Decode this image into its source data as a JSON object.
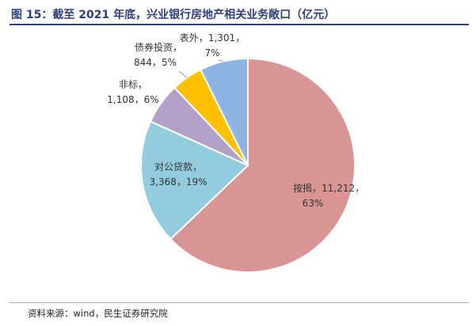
{
  "figure": {
    "title": "图 15：截至 2021 年底，兴业银行房地产相关业务敞口（亿元）",
    "source": "资料来源：wind，民生证券研究院"
  },
  "chart_data": {
    "type": "pie",
    "title": "图 15：截至 2021 年底，兴业银行房地产相关业务敞口（亿元）",
    "unit": "亿元",
    "slices": [
      {
        "name": "按揭",
        "value": 11212,
        "percent": "63%",
        "value_label": "11,212",
        "color": "#d99594"
      },
      {
        "name": "对公贷款",
        "value": 3368,
        "percent": "19%",
        "value_label": "3,368",
        "color": "#93cddd"
      },
      {
        "name": "非标",
        "value": 1108,
        "percent": "6%",
        "value_label": "1,108",
        "color": "#b2a1c7"
      },
      {
        "name": "债券投资",
        "value": 844,
        "percent": "5%",
        "value_label": "844",
        "color": "#ffc000"
      },
      {
        "name": "表外",
        "value": 1301,
        "percent": "7%",
        "value_label": "1,301",
        "color": "#8eb4e3"
      }
    ],
    "start_angle_deg": 0,
    "direction": "clockwise",
    "legend": "none",
    "data_labels": "category, value, percent"
  }
}
